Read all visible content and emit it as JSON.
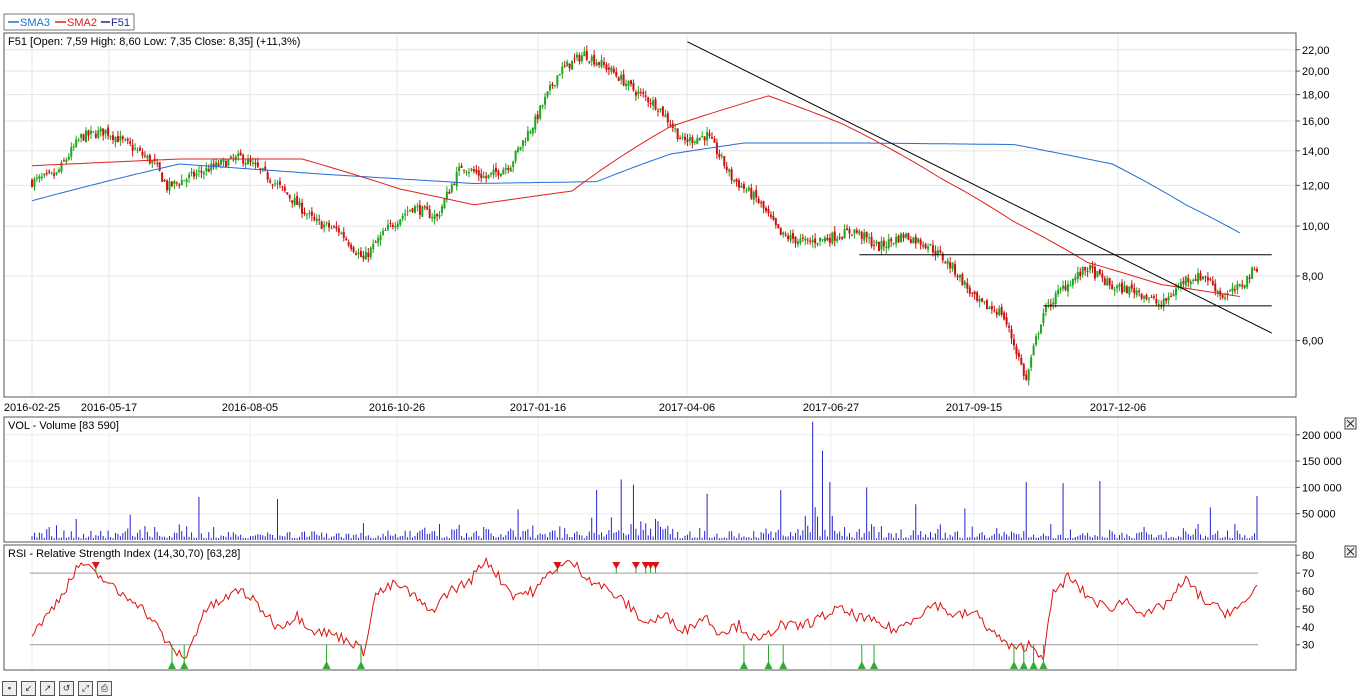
{
  "legend": {
    "items": [
      {
        "label": "SMA3",
        "color": "#1f6fd6"
      },
      {
        "label": "SMA2",
        "color": "#e02020"
      },
      {
        "label": "F51",
        "color": "#1e2a8c"
      }
    ]
  },
  "price_panel": {
    "header": "F51 [Open: 7,59  High: 8,60  Low: 7,35  Close: 8,35] (+11,3%)"
  },
  "volume_panel": {
    "header": "VOL - Volume [83 590]"
  },
  "rsi_panel": {
    "header": "RSI - Relative Strength Index (14,30,70) [63,28]"
  },
  "toolbar": {
    "icons": [
      "save-icon",
      "zoom-in-icon",
      "zoom-out-icon",
      "reset-icon",
      "fit-icon",
      "print-icon"
    ]
  },
  "chart_data": [
    {
      "type": "candlestick",
      "x_ticks": [
        "2016-02-25",
        "2016-05-17",
        "2016-08-05",
        "2016-10-26",
        "2017-01-16",
        "2017-04-06",
        "2017-06-27",
        "2017-09-15",
        "2017-12-06"
      ],
      "y_ticks": [
        "22,00",
        "20,00",
        "18,00",
        "16,00",
        "14,00",
        "12,00",
        "10,00",
        "8,00",
        "6,00"
      ],
      "scale": "log",
      "ylim": [
        4.7,
        23.5
      ],
      "close_points": [
        [
          0,
          12.2
        ],
        [
          10,
          12.6
        ],
        [
          20,
          14.9
        ],
        [
          30,
          15.3
        ],
        [
          40,
          14.3
        ],
        [
          50,
          13.2
        ],
        [
          55,
          11.9
        ],
        [
          65,
          12.5
        ],
        [
          75,
          13.1
        ],
        [
          85,
          13.6
        ],
        [
          95,
          12.6
        ],
        [
          105,
          11.4
        ],
        [
          115,
          10.2
        ],
        [
          125,
          9.8
        ],
        [
          135,
          8.6
        ],
        [
          145,
          9.9
        ],
        [
          155,
          10.9
        ],
        [
          165,
          10.4
        ],
        [
          175,
          13.1
        ],
        [
          185,
          12.4
        ],
        [
          195,
          13.2
        ],
        [
          205,
          16.0
        ],
        [
          215,
          20.0
        ],
        [
          225,
          21.6
        ],
        [
          235,
          20.2
        ],
        [
          245,
          18.4
        ],
        [
          255,
          17.1
        ],
        [
          265,
          14.6
        ],
        [
          275,
          15.0
        ],
        [
          285,
          12.4
        ],
        [
          295,
          11.3
        ],
        [
          305,
          9.6
        ],
        [
          315,
          9.3
        ],
        [
          325,
          9.5
        ],
        [
          335,
          9.8
        ],
        [
          345,
          9.1
        ],
        [
          355,
          9.6
        ],
        [
          365,
          9.2
        ],
        [
          375,
          8.3
        ],
        [
          385,
          7.1
        ],
        [
          395,
          6.8
        ],
        [
          405,
          5.0
        ],
        [
          412,
          6.8
        ],
        [
          420,
          7.6
        ],
        [
          430,
          8.3
        ],
        [
          440,
          7.6
        ],
        [
          450,
          7.5
        ],
        [
          460,
          7.0
        ],
        [
          470,
          7.9
        ],
        [
          478,
          8.0
        ],
        [
          485,
          7.3
        ],
        [
          492,
          7.6
        ],
        [
          499,
          8.35
        ]
      ],
      "series": [
        {
          "name": "SMA3",
          "color": "#1f6fd6",
          "points": [
            [
              0,
              11.2
            ],
            [
              60,
              13.2
            ],
            [
              120,
              12.6
            ],
            [
              180,
              12.1
            ],
            [
              230,
              12.2
            ],
            [
              260,
              13.8
            ],
            [
              290,
              14.5
            ],
            [
              340,
              14.5
            ],
            [
              400,
              14.4
            ],
            [
              440,
              13.2
            ],
            [
              470,
              11.0
            ],
            [
              492,
              9.7
            ]
          ]
        },
        {
          "name": "SMA2",
          "color": "#e02020",
          "points": [
            [
              0,
              13.1
            ],
            [
              60,
              13.5
            ],
            [
              110,
              13.5
            ],
            [
              150,
              11.8
            ],
            [
              180,
              11.0
            ],
            [
              220,
              11.7
            ],
            [
              260,
              15.6
            ],
            [
              300,
              17.9
            ],
            [
              330,
              15.8
            ],
            [
              370,
              12.4
            ],
            [
              400,
              10.2
            ],
            [
              430,
              8.5
            ],
            [
              460,
              7.7
            ],
            [
              492,
              7.3
            ]
          ]
        }
      ],
      "trendlines": [
        {
          "from": [
            267,
            22.8
          ],
          "to": [
            505,
            6.2
          ]
        },
        {
          "from": [
            337,
            8.8
          ],
          "to": [
            505,
            8.8
          ]
        },
        {
          "from": [
            412,
            7.0
          ],
          "to": [
            505,
            7.0
          ]
        }
      ]
    },
    {
      "type": "bar",
      "title": "VOL - Volume",
      "y_ticks": [
        "200 000",
        "150 000",
        "100 000",
        "50 000"
      ],
      "ylim": [
        0,
        230000
      ],
      "spikes": [
        [
          10,
          28000
        ],
        [
          18,
          40000
        ],
        [
          40,
          48000
        ],
        [
          68,
          82000
        ],
        [
          100,
          78000
        ],
        [
          135,
          32000
        ],
        [
          198,
          58000
        ],
        [
          230,
          95000
        ],
        [
          240,
          115000
        ],
        [
          245,
          105000
        ],
        [
          275,
          88000
        ],
        [
          305,
          95000
        ],
        [
          318,
          225000
        ],
        [
          322,
          170000
        ],
        [
          325,
          110000
        ],
        [
          340,
          100000
        ],
        [
          360,
          68000
        ],
        [
          380,
          60000
        ],
        [
          405,
          110000
        ],
        [
          420,
          108000
        ],
        [
          435,
          112000
        ],
        [
          480,
          62000
        ],
        [
          499,
          83590
        ]
      ]
    },
    {
      "type": "line",
      "title": "RSI - Relative Strength Index (14,30,70)",
      "y_ticks": [
        "80",
        "70",
        "60",
        "50",
        "40",
        "30"
      ],
      "ylim": [
        17,
        84
      ],
      "levels": [
        30,
        70
      ],
      "points": [
        [
          0,
          37
        ],
        [
          5,
          44
        ],
        [
          12,
          58
        ],
        [
          20,
          76
        ],
        [
          25,
          70
        ],
        [
          30,
          66
        ],
        [
          35,
          59
        ],
        [
          42,
          55
        ],
        [
          50,
          42
        ],
        [
          57,
          27
        ],
        [
          63,
          23
        ],
        [
          70,
          49
        ],
        [
          78,
          55
        ],
        [
          85,
          61
        ],
        [
          92,
          52
        ],
        [
          100,
          40
        ],
        [
          108,
          46
        ],
        [
          115,
          38
        ],
        [
          122,
          36
        ],
        [
          130,
          32
        ],
        [
          135,
          26
        ],
        [
          140,
          58
        ],
        [
          148,
          64
        ],
        [
          155,
          58
        ],
        [
          162,
          48
        ],
        [
          170,
          60
        ],
        [
          178,
          65
        ],
        [
          185,
          78
        ],
        [
          190,
          68
        ],
        [
          196,
          58
        ],
        [
          205,
          60
        ],
        [
          212,
          72
        ],
        [
          220,
          76
        ],
        [
          226,
          68
        ],
        [
          234,
          61
        ],
        [
          242,
          53
        ],
        [
          250,
          42
        ],
        [
          258,
          46
        ],
        [
          266,
          38
        ],
        [
          274,
          46
        ],
        [
          280,
          37
        ],
        [
          288,
          41
        ],
        [
          296,
          31
        ],
        [
          304,
          41
        ],
        [
          312,
          40
        ],
        [
          320,
          44
        ],
        [
          328,
          50
        ],
        [
          336,
          46
        ],
        [
          344,
          42
        ],
        [
          352,
          38
        ],
        [
          360,
          46
        ],
        [
          368,
          53
        ],
        [
          376,
          46
        ],
        [
          384,
          48
        ],
        [
          392,
          36
        ],
        [
          400,
          27
        ],
        [
          406,
          30
        ],
        [
          412,
          24
        ],
        [
          416,
          58
        ],
        [
          422,
          68
        ],
        [
          430,
          57
        ],
        [
          438,
          50
        ],
        [
          446,
          55
        ],
        [
          454,
          46
        ],
        [
          462,
          53
        ],
        [
          470,
          66
        ],
        [
          478,
          54
        ],
        [
          486,
          48
        ],
        [
          494,
          52
        ],
        [
          499,
          63
        ]
      ],
      "markers_down": [
        26,
        214,
        238,
        246,
        250,
        252,
        254
      ],
      "markers_up": [
        57,
        62,
        120,
        134,
        290,
        300,
        306,
        338,
        343,
        400,
        404,
        408,
        412
      ]
    }
  ]
}
